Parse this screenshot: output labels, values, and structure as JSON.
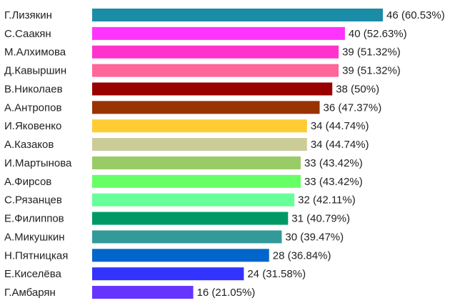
{
  "chart_data": {
    "type": "bar",
    "orientation": "horizontal",
    "title": "",
    "xlabel": "",
    "ylabel": "",
    "grid": false,
    "legend": "none",
    "xlim": [
      0,
      46
    ],
    "categories": [
      "Г.Лизякин",
      "С.Саакян",
      "М.Алхимова",
      "Д.Кавыршин",
      "В.Николаев",
      "А.Антропов",
      "И.Яковенко",
      "А.Казаков",
      "И.Мартынова",
      "А.Фирсов",
      "С.Рязанцев",
      "Е.Филиппов",
      "А.Микушкин",
      "Н.Пятницкая",
      "Е.Киселёва",
      "Г.Амбарян"
    ],
    "values": [
      46,
      40,
      39,
      39,
      38,
      36,
      34,
      34,
      33,
      33,
      32,
      31,
      30,
      28,
      24,
      16
    ],
    "value_labels": [
      "46 (60.53%)",
      "40 (52.63%)",
      "39 (51.32%)",
      "39 (51.32%)",
      "38 (50%)",
      "36 (47.37%)",
      "34 (44.74%)",
      "34 (44.74%)",
      "33 (43.42%)",
      "33 (43.42%)",
      "32 (42.11%)",
      "31 (40.79%)",
      "30 (39.47%)",
      "28 (36.84%)",
      "24 (31.58%)",
      "16 (21.05%)"
    ],
    "colors": [
      "#1a8ca6",
      "#ff33ff",
      "#ff33cc",
      "#ff6699",
      "#990000",
      "#993300",
      "#ffcc33",
      "#cccc99",
      "#99cc66",
      "#66ff66",
      "#66ff99",
      "#009966",
      "#339999",
      "#0066cc",
      "#3333ff",
      "#6633ff"
    ]
  }
}
